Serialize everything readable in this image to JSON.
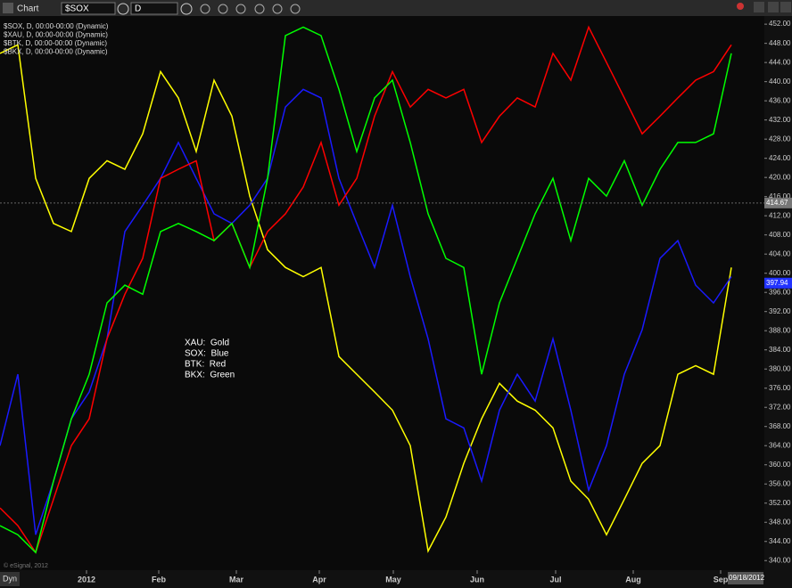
{
  "window": {
    "title": "Chart",
    "symbol": "$SOX",
    "interval": "D",
    "mode": "Dyn",
    "date": "09/18/2012",
    "copyright": "© eSignal, 2012"
  },
  "chart_data": {
    "type": "line",
    "x": [
      0,
      1,
      2,
      3,
      4,
      5,
      6,
      7,
      8,
      9,
      10,
      11,
      12,
      13,
      14,
      15,
      16,
      17,
      18,
      19,
      20,
      21,
      22,
      23,
      24,
      25,
      26,
      27,
      28,
      29,
      30,
      31,
      32,
      33,
      34,
      35,
      36,
      37,
      38,
      39,
      40,
      41
    ],
    "xlim": [
      0,
      42.75
    ],
    "xticks": [
      {
        "value": 4.85,
        "label": "2012"
      },
      {
        "value": 8.9,
        "label": "Feb"
      },
      {
        "value": 13.25,
        "label": "Mar"
      },
      {
        "value": 17.9,
        "label": "Apr"
      },
      {
        "value": 22.05,
        "label": "May"
      },
      {
        "value": 26.75,
        "label": "Jun"
      },
      {
        "value": 31.15,
        "label": "Jul"
      },
      {
        "value": 35.5,
        "label": "Aug"
      },
      {
        "value": 40.4,
        "label": "Sep"
      }
    ],
    "ylim": [
      338,
      453.7
    ],
    "yticks": [
      {
        "value": 340,
        "label": "340.00"
      },
      {
        "value": 344,
        "label": "344.00"
      },
      {
        "value": 348,
        "label": "348.00"
      },
      {
        "value": 352,
        "label": "352.00"
      },
      {
        "value": 356,
        "label": "356.00"
      },
      {
        "value": 360,
        "label": "360.00"
      },
      {
        "value": 364,
        "label": "364.00"
      },
      {
        "value": 368,
        "label": "368.00"
      },
      {
        "value": 372,
        "label": "372.00"
      },
      {
        "value": 376,
        "label": "376.00"
      },
      {
        "value": 380,
        "label": "380.00"
      },
      {
        "value": 384,
        "label": "384.00"
      },
      {
        "value": 388,
        "label": "388.00"
      },
      {
        "value": 392,
        "label": "392.00"
      },
      {
        "value": 396,
        "label": "396.00"
      },
      {
        "value": 400,
        "label": "400.00"
      },
      {
        "value": 404,
        "label": "404.00"
      },
      {
        "value": 408,
        "label": "408.00"
      },
      {
        "value": 412,
        "label": "412.00"
      },
      {
        "value": 416,
        "label": "416.00"
      },
      {
        "value": 420,
        "label": "420.00"
      },
      {
        "value": 424,
        "label": "424.00"
      },
      {
        "value": 428,
        "label": "428.00"
      },
      {
        "value": 432,
        "label": "432.00"
      },
      {
        "value": 436,
        "label": "436.00"
      },
      {
        "value": 440,
        "label": "440.00"
      },
      {
        "value": 444,
        "label": "444.00"
      },
      {
        "value": 448,
        "label": "448.00"
      },
      {
        "value": 452,
        "label": "452.00"
      }
    ],
    "grid": false,
    "series": [
      {
        "name": "$SOX, D, 00:00-00:00 (Dynamic)",
        "color": "#1a1aff",
        "values": [
          364,
          378.9,
          345.4,
          356.6,
          369.6,
          375.2,
          386.3,
          408.7,
          414.2,
          419.8,
          427.3,
          419.8,
          412.4,
          410.4,
          414.2,
          419.8,
          434.7,
          438.4,
          436.6,
          419.8,
          410.4,
          401.2,
          414.2,
          399.3,
          386.3,
          369.6,
          367.7,
          356.6,
          371.4,
          378.9,
          373.3,
          386.3,
          371.4,
          354.7,
          364,
          378.9,
          388.2,
          403.1,
          406.8,
          397.5,
          393.8,
          399.3
        ]
      },
      {
        "name": "$XAU, D, 00:00-00:00 (Dynamic)",
        "color": "#ffff00",
        "values": [
          445.9,
          447.7,
          419.8,
          410.4,
          408.7,
          419.8,
          423.5,
          421.7,
          429.1,
          442.1,
          436.6,
          425.4,
          440.3,
          432.8,
          416.1,
          404.9,
          401.2,
          399.3,
          401.2,
          382.6,
          378.9,
          375.2,
          371.4,
          364,
          342,
          349.1,
          360.3,
          369.6,
          377,
          373.3,
          371.4,
          367.7,
          356.6,
          352.8,
          345.4,
          352.8,
          360.3,
          364,
          378.9,
          380.7,
          378.9,
          401.2
        ]
      },
      {
        "name": "$BTK, D, 00:00-00:00 (Dynamic)",
        "color": "#ff0000",
        "values": [
          351,
          347.3,
          341.7,
          352.8,
          364,
          369.6,
          386.3,
          395.6,
          403.1,
          419.8,
          421.7,
          423.5,
          406.8,
          410.4,
          401.2,
          408.7,
          412.4,
          418,
          427.3,
          414.2,
          419.8,
          432.8,
          442.1,
          434.7,
          438.4,
          436.6,
          438.4,
          427.3,
          432.8,
          436.6,
          434.7,
          445.9,
          440.3,
          451.4,
          444,
          436.6,
          429.1,
          432.8,
          436.6,
          440.3,
          442.1,
          447.7
        ]
      },
      {
        "name": "$BKX, D, 00:00-00:00 (Dynamic)",
        "color": "#00ff00",
        "values": [
          347.3,
          345.4,
          341.7,
          356.6,
          369.6,
          378.9,
          393.8,
          397.5,
          395.6,
          408.7,
          410.4,
          408.7,
          406.8,
          410.4,
          401.2,
          419.8,
          449.6,
          451.4,
          449.6,
          438.4,
          425.4,
          436.6,
          440.3,
          427.3,
          412.4,
          403.1,
          401.2,
          378.9,
          393.8,
          403.1,
          412.4,
          419.8,
          406.8,
          419.8,
          416.1,
          423.5,
          414.2,
          421.7,
          427.3,
          427.3,
          429.1,
          445.9
        ]
      }
    ],
    "price_markers": [
      {
        "value": 414.67,
        "color": "#777777"
      },
      {
        "value": 397.94,
        "color": "#2233ff"
      }
    ],
    "annotations": [
      "XAU:  Gold",
      "SOX:  Blue",
      "BTK:  Red",
      "BKX:  Green"
    ]
  }
}
